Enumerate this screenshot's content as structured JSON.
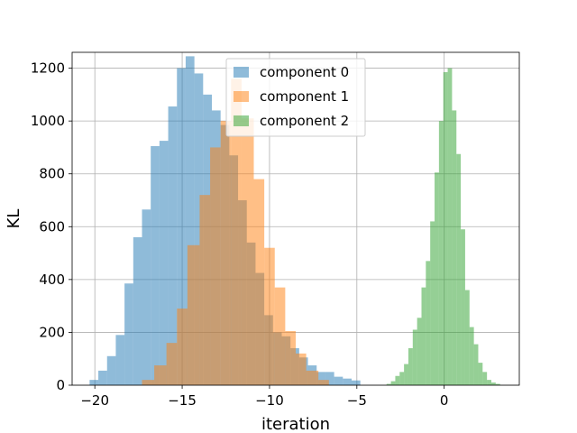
{
  "chart_data": {
    "type": "bar",
    "subtype": "histogram",
    "xlabel": "iteration",
    "ylabel": "KL",
    "xlim": [
      -21.3,
      4.3
    ],
    "ylim": [
      0,
      1260
    ],
    "x_ticks": [
      -20,
      -15,
      -10,
      -5,
      0
    ],
    "y_ticks": [
      0,
      200,
      400,
      600,
      800,
      1000,
      1200
    ],
    "grid": true,
    "legend_position": "top-center",
    "series": [
      {
        "name": "component 0",
        "color": "#1f77b4",
        "opacity": 0.5,
        "bin_edges": [
          -20.3,
          -19.8,
          -19.3,
          -18.8,
          -18.3,
          -17.8,
          -17.3,
          -16.8,
          -16.3,
          -15.8,
          -15.3,
          -14.8,
          -14.3,
          -13.8,
          -13.3,
          -12.8,
          -12.3,
          -11.8,
          -11.3,
          -10.8,
          -10.3,
          -9.8,
          -9.3,
          -8.8,
          -8.3,
          -7.8,
          -7.3,
          -6.8,
          -6.3,
          -5.8,
          -5.3,
          -4.8
        ],
        "counts": [
          20,
          55,
          110,
          190,
          385,
          560,
          665,
          905,
          925,
          1055,
          1200,
          1245,
          1180,
          1100,
          1040,
          985,
          870,
          700,
          540,
          425,
          265,
          200,
          185,
          140,
          105,
          75,
          50,
          50,
          32,
          25,
          18
        ]
      },
      {
        "name": "component 1",
        "color": "#ff7f0e",
        "opacity": 0.5,
        "bin_edges": [
          -17.3,
          -16.6,
          -15.9,
          -15.3,
          -14.7,
          -14.0,
          -13.4,
          -12.8,
          -12.2,
          -11.6,
          -10.9,
          -10.3,
          -9.7,
          -9.1,
          -8.5,
          -7.9,
          -7.2,
          -6.6
        ],
        "counts": [
          20,
          75,
          160,
          290,
          530,
          720,
          900,
          1000,
          1160,
          1010,
          780,
          520,
          370,
          205,
          120,
          55,
          20
        ]
      },
      {
        "name": "component 2",
        "color": "#2ca02c",
        "opacity": 0.5,
        "bin_edges": [
          -3.3,
          -3.05,
          -2.8,
          -2.55,
          -2.3,
          -2.05,
          -1.8,
          -1.55,
          -1.3,
          -1.05,
          -0.8,
          -0.55,
          -0.3,
          -0.05,
          0.2,
          0.45,
          0.7,
          0.95,
          1.2,
          1.45,
          1.7,
          1.95,
          2.2,
          2.45,
          2.7,
          2.95,
          3.2
        ],
        "counts": [
          5,
          15,
          35,
          50,
          80,
          140,
          210,
          255,
          370,
          470,
          620,
          805,
          1000,
          1185,
          1200,
          1040,
          875,
          590,
          360,
          220,
          155,
          85,
          50,
          20,
          10,
          5
        ]
      }
    ]
  }
}
